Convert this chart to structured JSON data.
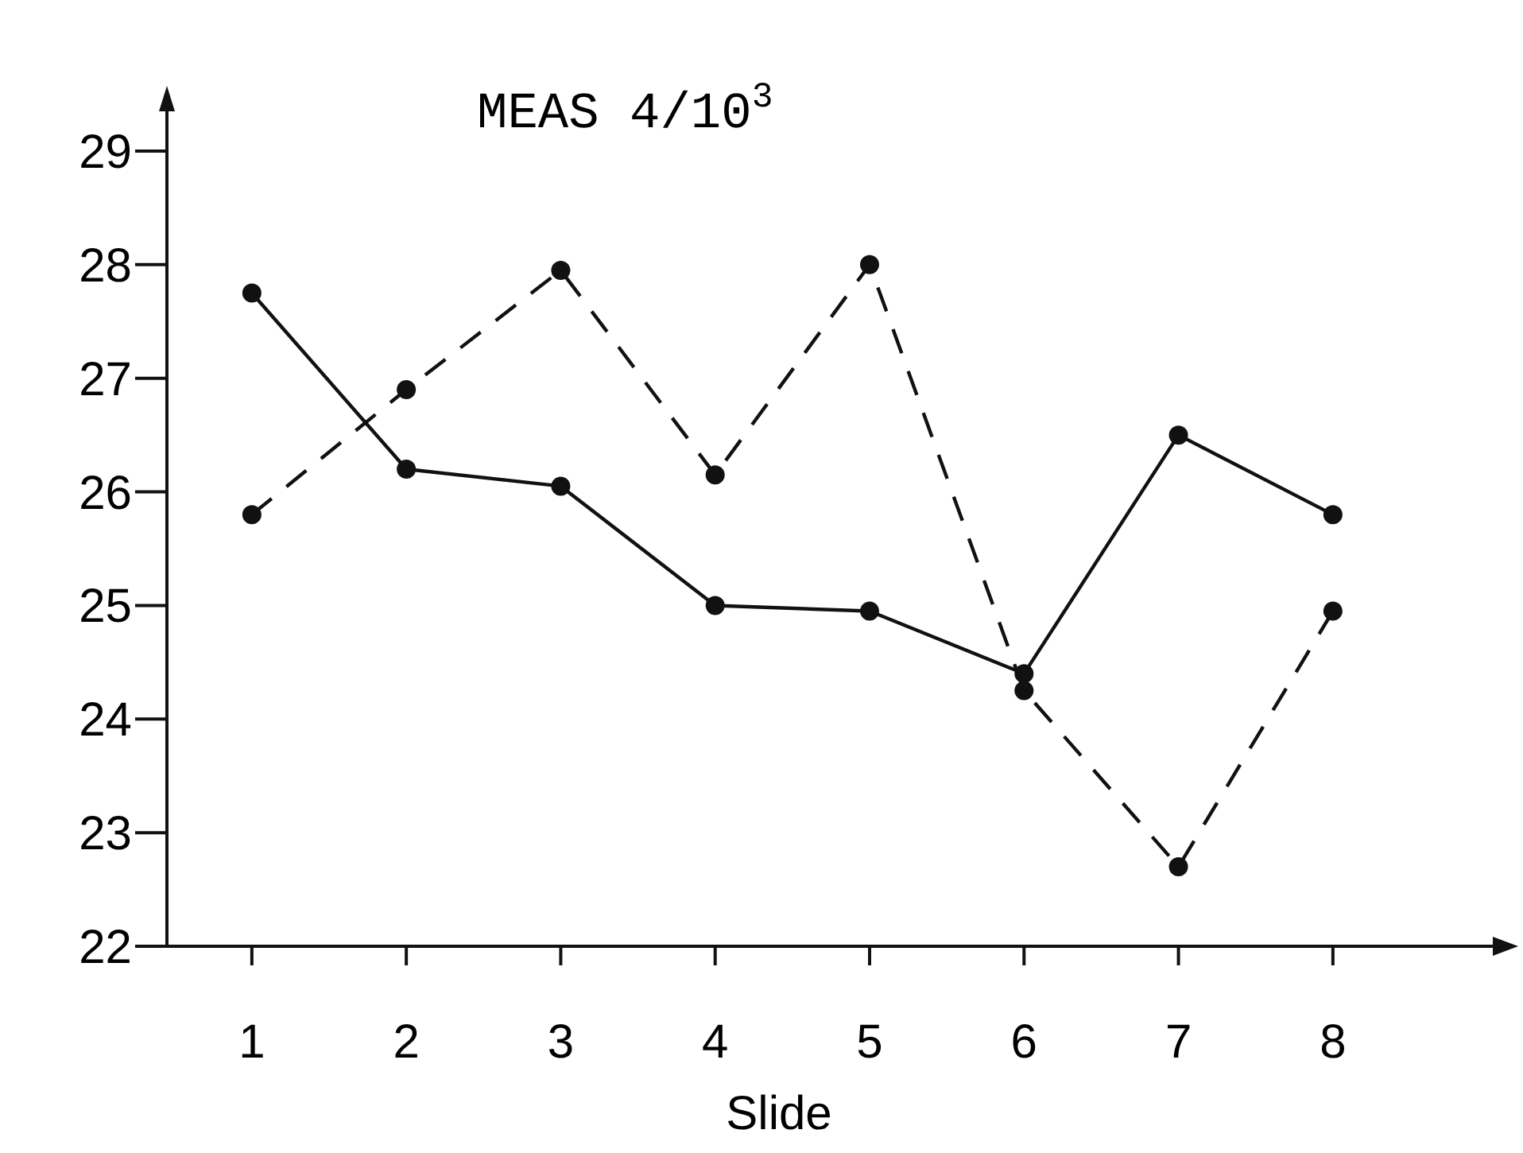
{
  "chart_data": {
    "type": "line",
    "title": "MEAS 4/10$^{3}$",
    "xlabel": "Slide",
    "x": [
      1,
      2,
      3,
      4,
      5,
      6,
      7,
      8
    ],
    "xlim": [
      0.45,
      9.2
    ],
    "xticks": [
      1,
      2,
      3,
      4,
      5,
      6,
      7,
      8
    ],
    "ylim": [
      22,
      29.35
    ],
    "yticks": [
      22,
      23,
      24,
      25,
      26,
      27,
      28,
      29
    ],
    "grid": false,
    "marker": "circle",
    "series": [
      {
        "color": "#111111",
        "line_style": "solid",
        "values": [
          27.75,
          26.2,
          26.05,
          25.0,
          24.95,
          24.4,
          26.5,
          25.8
        ]
      },
      {
        "color": "#111111",
        "line_style": "dashed",
        "values": [
          25.8,
          26.9,
          27.95,
          26.15,
          28.0,
          24.25,
          22.7,
          24.95
        ]
      }
    ]
  }
}
